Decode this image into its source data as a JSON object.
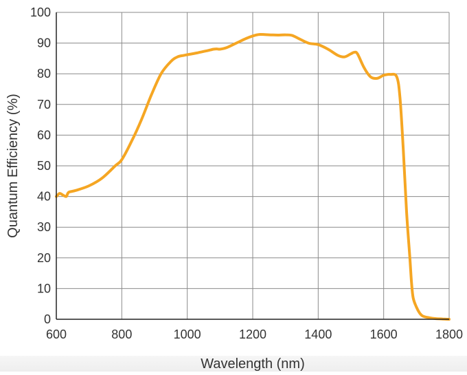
{
  "colors": {
    "curve": "#f5a623",
    "grid": "#8a8a8a",
    "axis": "#222222",
    "text": "#333333"
  },
  "chart_data": {
    "type": "line",
    "title": "",
    "xlabel": "Wavelength (nm)",
    "ylabel": "Quantum Efficiency (%)",
    "xlim": [
      600,
      1800
    ],
    "ylim": [
      0,
      100
    ],
    "x_ticks": [
      600,
      800,
      1000,
      1200,
      1400,
      1600,
      1800
    ],
    "y_ticks": [
      0,
      10,
      20,
      30,
      40,
      50,
      60,
      70,
      80,
      90,
      100
    ],
    "grid": true,
    "legend": "none",
    "series": [
      {
        "x": [
          600,
          610,
          620,
          630,
          635,
          640,
          660,
          700,
          740,
          780,
          800,
          830,
          860,
          890,
          920,
          950,
          970,
          990,
          1000,
          1030,
          1060,
          1080,
          1090,
          1100,
          1120,
          1150,
          1180,
          1200,
          1220,
          1250,
          1280,
          1300,
          1320,
          1340,
          1370,
          1400,
          1430,
          1460,
          1480,
          1500,
          1510,
          1520,
          1540,
          1560,
          1580,
          1600,
          1620,
          1640,
          1650,
          1660,
          1670,
          1680,
          1685,
          1690,
          1700,
          1710,
          1720,
          1740,
          1760,
          1780,
          1800
        ],
        "y": [
          40,
          41,
          40.5,
          40,
          41,
          41.5,
          42,
          43.5,
          46,
          50,
          52,
          58,
          65,
          73,
          80,
          84,
          85.5,
          86,
          86.2,
          86.8,
          87.5,
          88,
          88.1,
          88,
          88.5,
          90,
          91.5,
          92.3,
          92.8,
          92.7,
          92.6,
          92.7,
          92.5,
          91.5,
          90,
          89.5,
          88,
          86,
          85.5,
          86.5,
          87,
          86.5,
          82,
          79,
          78.5,
          79.5,
          79.8,
          79,
          72,
          55,
          35,
          20,
          12,
          7,
          4,
          2,
          1,
          0.5,
          0.2,
          0.1,
          0
        ]
      }
    ]
  }
}
